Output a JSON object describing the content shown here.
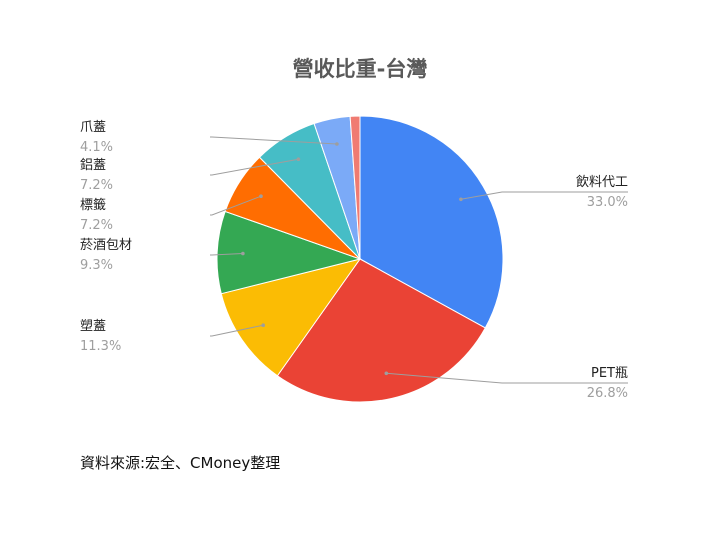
{
  "chart_data": {
    "type": "pie",
    "title": "營收比重-台灣",
    "labels": [
      "飲料代工",
      "PET瓶",
      "塑蓋",
      "菸酒包材",
      "標籤",
      "鋁蓋",
      "爪蓋"
    ],
    "values": [
      33.0,
      26.8,
      11.3,
      9.3,
      7.2,
      7.2,
      4.1
    ],
    "value_labels": [
      "33.0%",
      "26.8%",
      "11.3%",
      "9.3%",
      "7.2%",
      "7.2%",
      "4.1%"
    ],
    "unlabeled_remainder": 1.1,
    "colors": [
      "#4285f4",
      "#ea4335",
      "#fbbc04",
      "#34a853",
      "#ff6d01",
      "#46bdc6",
      "#7baaf7",
      "#f07b72"
    ],
    "legend": "leader-lines"
  },
  "source_note": "資料來源:宏全、CMoney整理"
}
